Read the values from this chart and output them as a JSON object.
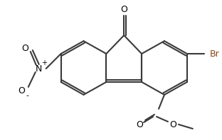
{
  "background_color": "#ffffff",
  "bond_color": "#3a3a3a",
  "line_width": 1.5,
  "br_color": "#8B4513",
  "text_color": "#000000",
  "figsize": [
    3.12,
    1.98
  ],
  "dpi": 100,
  "xlim": [
    0,
    312
  ],
  "ylim": [
    0,
    198
  ]
}
